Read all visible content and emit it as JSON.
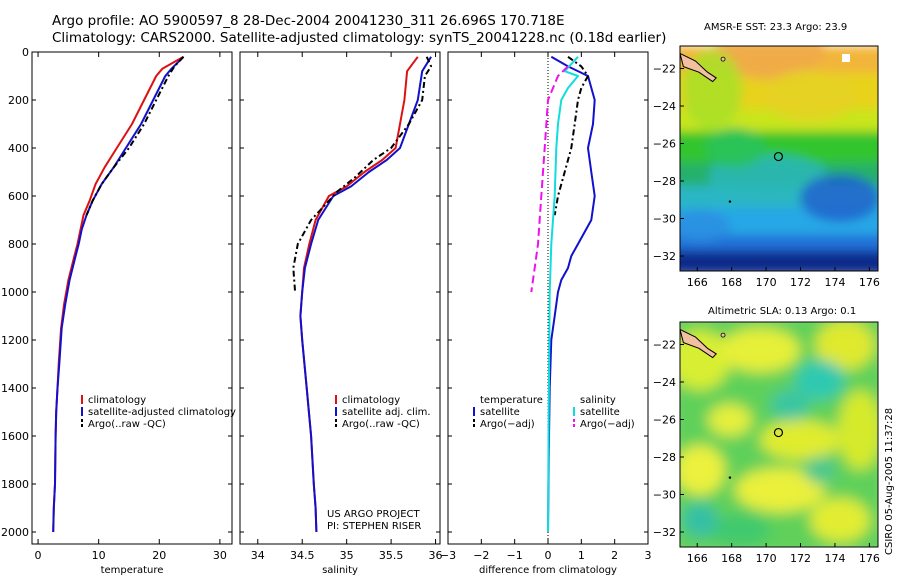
{
  "header": {
    "line1": "Argo profile: AO 5900597_8 28-Dec-2004 20041230_311 26.696S 170.718E",
    "line2": "Climatology: CARS2000. Satellite-adjusted climatology: synTS_20041228.nc (0.18d earlier)"
  },
  "side_stamp": "CSIRO 05-Aug-2005 11:37:28",
  "colors": {
    "climatology": "#dd1111",
    "satellite": "#1111cc",
    "argo": "#000000",
    "satellite_sal": "#11dddd",
    "argo_sal_adj": "#ee11ee"
  },
  "chart_data": [
    {
      "type": "line",
      "id": "temperature",
      "xlabel": "temperature",
      "ylabel": "",
      "xlim": [
        -1,
        32
      ],
      "ylim": [
        2050,
        0
      ],
      "xticks": [
        "0",
        "10",
        "20",
        "30"
      ],
      "xtick_values": [
        0,
        10,
        20,
        30
      ],
      "yticks": [
        "0",
        "200",
        "400",
        "600",
        "800",
        "1000",
        "1200",
        "1400",
        "1600",
        "1800",
        "2000"
      ],
      "ytick_values": [
        0,
        200,
        400,
        600,
        800,
        1000,
        1200,
        1400,
        1600,
        1800,
        2000
      ],
      "legend": [
        "climatology",
        "satellite-adjusted climatology",
        "Argo(..raw -QC)"
      ],
      "series": [
        {
          "name": "climatology",
          "color": "#dd1111",
          "dash": "",
          "x": [
            24,
            20.5,
            19.5,
            17.5,
            15.5,
            13,
            11,
            9.5,
            8.5,
            7.5,
            7,
            6.5,
            6,
            5,
            4.3,
            3.8,
            3.4,
            3.2,
            3,
            2.9,
            2.8,
            2.6,
            2.5
          ],
          "y": [
            20,
            70,
            100,
            200,
            300,
            400,
            480,
            550,
            620,
            680,
            740,
            800,
            850,
            950,
            1050,
            1150,
            1300,
            1400,
            1500,
            1600,
            1800,
            1900,
            2000
          ]
        },
        {
          "name": "satellite-adjusted climatology",
          "color": "#1111cc",
          "dash": "",
          "x": [
            24,
            22,
            21,
            19,
            17,
            14.5,
            12.5,
            10.5,
            9,
            8,
            7.2,
            6.7,
            6.2,
            5.2,
            4.5,
            3.9,
            3.5,
            3.2,
            3,
            2.9,
            2.8,
            2.6,
            2.5
          ],
          "y": [
            20,
            70,
            100,
            200,
            300,
            400,
            480,
            550,
            620,
            680,
            740,
            800,
            850,
            950,
            1050,
            1150,
            1300,
            1400,
            1500,
            1600,
            1800,
            1900,
            2000
          ]
        },
        {
          "name": "Argo(..raw -QC)",
          "color": "#000000",
          "dash": "6,3,2,3",
          "x": [
            24,
            22.5,
            21.5,
            19.5,
            17.5,
            15,
            12.5,
            10.5,
            9,
            8
          ],
          "y": [
            20,
            60,
            100,
            200,
            300,
            400,
            480,
            550,
            620,
            680
          ]
        }
      ]
    },
    {
      "type": "line",
      "id": "salinity",
      "xlabel": "salinity",
      "ylabel": "",
      "xlim": [
        33.8,
        36.05
      ],
      "ylim": [
        2050,
        0
      ],
      "xticks": [
        "34",
        "34.5",
        "35",
        "35.5",
        "36"
      ],
      "xtick_values": [
        34,
        34.5,
        35,
        35.5,
        36
      ],
      "annotation": [
        "US ARGO PROJECT",
        "PI: STEPHEN RISER"
      ],
      "legend": [
        "climatology",
        "satellite adj. clim.",
        "Argo(..raw -QC)"
      ],
      "series": [
        {
          "name": "climatology",
          "color": "#dd1111",
          "dash": "",
          "x": [
            35.8,
            35.68,
            35.65,
            35.6,
            35.55,
            35.4,
            35.2,
            35.0,
            34.8,
            34.65,
            34.58,
            34.52,
            34.5,
            34.48,
            34.5,
            34.55,
            34.6,
            34.63,
            34.65,
            34.66
          ],
          "y": [
            20,
            80,
            200,
            300,
            400,
            450,
            500,
            560,
            600,
            700,
            800,
            900,
            1000,
            1100,
            1200,
            1400,
            1600,
            1800,
            1900,
            2000
          ]
        },
        {
          "name": "satellite adj. clim.",
          "color": "#1111cc",
          "dash": "",
          "x": [
            35.95,
            35.85,
            35.8,
            35.7,
            35.6,
            35.45,
            35.25,
            35.05,
            34.85,
            34.68,
            34.6,
            34.53,
            34.5,
            34.48,
            34.5,
            34.55,
            34.6,
            34.63,
            34.65,
            34.66
          ],
          "y": [
            20,
            80,
            200,
            300,
            400,
            450,
            500,
            560,
            600,
            700,
            800,
            900,
            1000,
            1100,
            1200,
            1400,
            1600,
            1800,
            1900,
            2000
          ]
        },
        {
          "name": "Argo(..raw -QC)",
          "color": "#000000",
          "dash": "6,3,2,3",
          "x": [
            35.9,
            35.95,
            35.88,
            35.85,
            35.7,
            35.5,
            35.3,
            35.1,
            34.9,
            34.6,
            34.45,
            34.4,
            34.42
          ],
          "y": [
            20,
            60,
            100,
            200,
            300,
            400,
            450,
            520,
            580,
            700,
            800,
            900,
            1000
          ]
        }
      ]
    },
    {
      "type": "line",
      "id": "difference",
      "xlabel": "difference from climatology",
      "ylabel": "",
      "xlim": [
        -3,
        3
      ],
      "ylim": [
        2050,
        0
      ],
      "xticks": [
        "−3",
        "−2",
        "−1",
        "0",
        "1",
        "2",
        "3"
      ],
      "xtick_values": [
        -3,
        -2,
        -1,
        0,
        1,
        2,
        3
      ],
      "legend": [
        "temperature",
        "satellite",
        "Argo(−adj)",
        "salinity",
        "satellite",
        "Argo(−adj)"
      ],
      "series": [
        {
          "name": "temperature satellite",
          "color": "#1111cc",
          "dash": "",
          "x": [
            0.1,
            0.6,
            1.2,
            1.4,
            1.35,
            1.2,
            1.3,
            1.4,
            1.3,
            0.9,
            0.7,
            0.6,
            0.4,
            0.3,
            0.2,
            0.1,
            0.05,
            0.02,
            0
          ],
          "y": [
            20,
            60,
            100,
            200,
            300,
            400,
            500,
            600,
            700,
            800,
            850,
            900,
            950,
            1000,
            1100,
            1200,
            1400,
            1700,
            2000
          ]
        },
        {
          "name": "temperature Argo(−adj)",
          "color": "#000000",
          "dash": "6,3,2,3",
          "x": [
            0.6,
            1.0,
            1.2,
            1.0,
            0.9,
            0.8,
            0.7,
            0.5,
            0.3,
            0.2
          ],
          "y": [
            20,
            60,
            100,
            150,
            200,
            300,
            400,
            500,
            600,
            680
          ]
        },
        {
          "name": "salinity satellite",
          "color": "#11dddd",
          "dash": "",
          "x": [
            0.9,
            0.5,
            0.9,
            0.6,
            0.4,
            0.3,
            0.25,
            0.2,
            0.1,
            0.05,
            0.02,
            0
          ],
          "y": [
            20,
            80,
            100,
            150,
            200,
            300,
            400,
            600,
            800,
            1000,
            1500,
            2000
          ]
        },
        {
          "name": "salinity Argo(−adj)",
          "color": "#ee11ee",
          "dash": "8,4",
          "x": [
            0.6,
            0.3,
            0.0,
            -0.1,
            -0.2,
            -0.3,
            -0.4,
            -0.5
          ],
          "y": [
            60,
            100,
            200,
            400,
            600,
            800,
            900,
            1000
          ]
        }
      ]
    },
    {
      "type": "heatmap",
      "id": "sst-map",
      "title": "AMSR-E SST: 23.3 Argo: 23.9",
      "xlim": [
        165,
        176.5
      ],
      "ylim": [
        -32.8,
        -20.8
      ],
      "xticks": [
        "166",
        "168",
        "170",
        "172",
        "174",
        "176"
      ],
      "xtick_values": [
        166,
        168,
        170,
        172,
        174,
        176
      ],
      "yticks": [
        "−22",
        "−24",
        "−26",
        "−28",
        "−30",
        "−32"
      ],
      "ytick_values": [
        -22,
        -24,
        -26,
        -28,
        -30,
        -32
      ],
      "marker": {
        "lon": 170.718,
        "lat": -26.696
      }
    },
    {
      "type": "heatmap",
      "id": "sla-map",
      "title": "Altimetric SLA: 0.13 Argo: 0.1",
      "xlim": [
        165,
        176.5
      ],
      "ylim": [
        -32.8,
        -20.8
      ],
      "xticks": [
        "166",
        "168",
        "170",
        "172",
        "174",
        "176"
      ],
      "xtick_values": [
        166,
        168,
        170,
        172,
        174,
        176
      ],
      "yticks": [
        "−22",
        "−24",
        "−26",
        "−28",
        "−30",
        "−32"
      ],
      "ytick_values": [
        -22,
        -24,
        -26,
        -28,
        -30,
        -32
      ],
      "marker": {
        "lon": 170.718,
        "lat": -26.696
      }
    }
  ]
}
